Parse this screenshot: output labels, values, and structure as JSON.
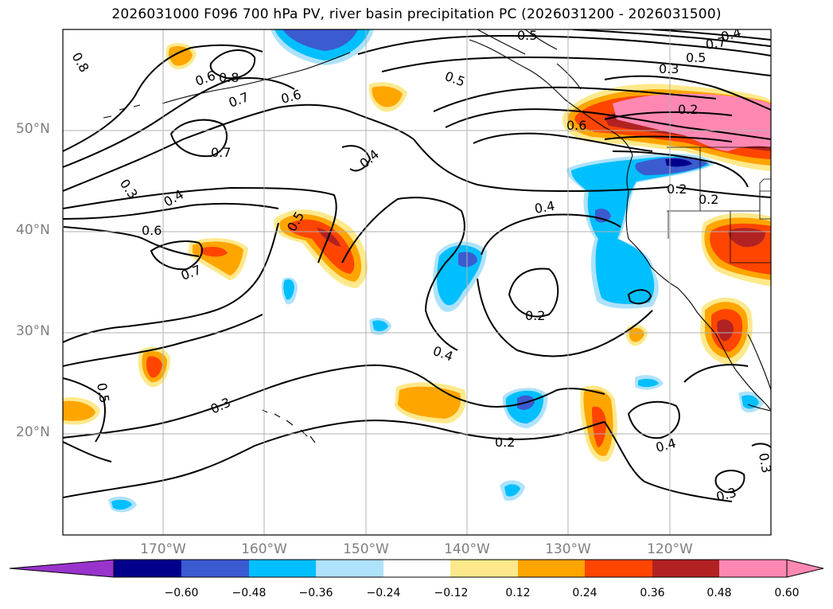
{
  "title": "2026031000 F096 700 hPa PV, river basin precipitation PC (2026031200 - 2026031500)",
  "map": {
    "projection": "PlateCarree",
    "lon_range": [
      -180,
      -110
    ],
    "lat_range": [
      10,
      60
    ],
    "lat_labels": [
      {
        "value": 50,
        "text": "50°N"
      },
      {
        "value": 40,
        "text": "40°N"
      },
      {
        "value": 30,
        "text": "30°N"
      },
      {
        "value": 20,
        "text": "20°N"
      }
    ],
    "lon_labels": [
      {
        "value": -170,
        "text": "170°W"
      },
      {
        "value": -160,
        "text": "160°W"
      },
      {
        "value": -150,
        "text": "150°W"
      },
      {
        "value": -140,
        "text": "140°W"
      },
      {
        "value": -130,
        "text": "130°W"
      },
      {
        "value": -120,
        "text": "120°W"
      }
    ],
    "contour_labels": [
      "0.8",
      "0.6",
      "0.7",
      "0.5",
      "0.8",
      "0.7",
      "0.4",
      "0.7",
      "0.6",
      "0.3",
      "0.5",
      "0.2",
      "0.6",
      "0.5",
      "0.3",
      "0.4",
      "0.4",
      "0.4",
      "0.6",
      "0.7",
      "0.5",
      "0.2",
      "0.2",
      "0.4",
      "0.5",
      "0.3",
      "0.2",
      "0.4",
      "0.3",
      "0.2",
      "0.3"
    ]
  },
  "colorbar": {
    "colors": [
      "#9933cc",
      "#00008b",
      "#3b5bd1",
      "#00bfff",
      "#aee2fb",
      "#ffffff",
      "#fde98c",
      "#ffa500",
      "#ff4500",
      "#b22222",
      "#ff88b3",
      "#ff88b3"
    ],
    "tick_labels": [
      "−0.60",
      "−0.48",
      "−0.36",
      "−0.24",
      "−0.12",
      "0.12",
      "0.24",
      "0.36",
      "0.48",
      "0.60"
    ]
  }
}
